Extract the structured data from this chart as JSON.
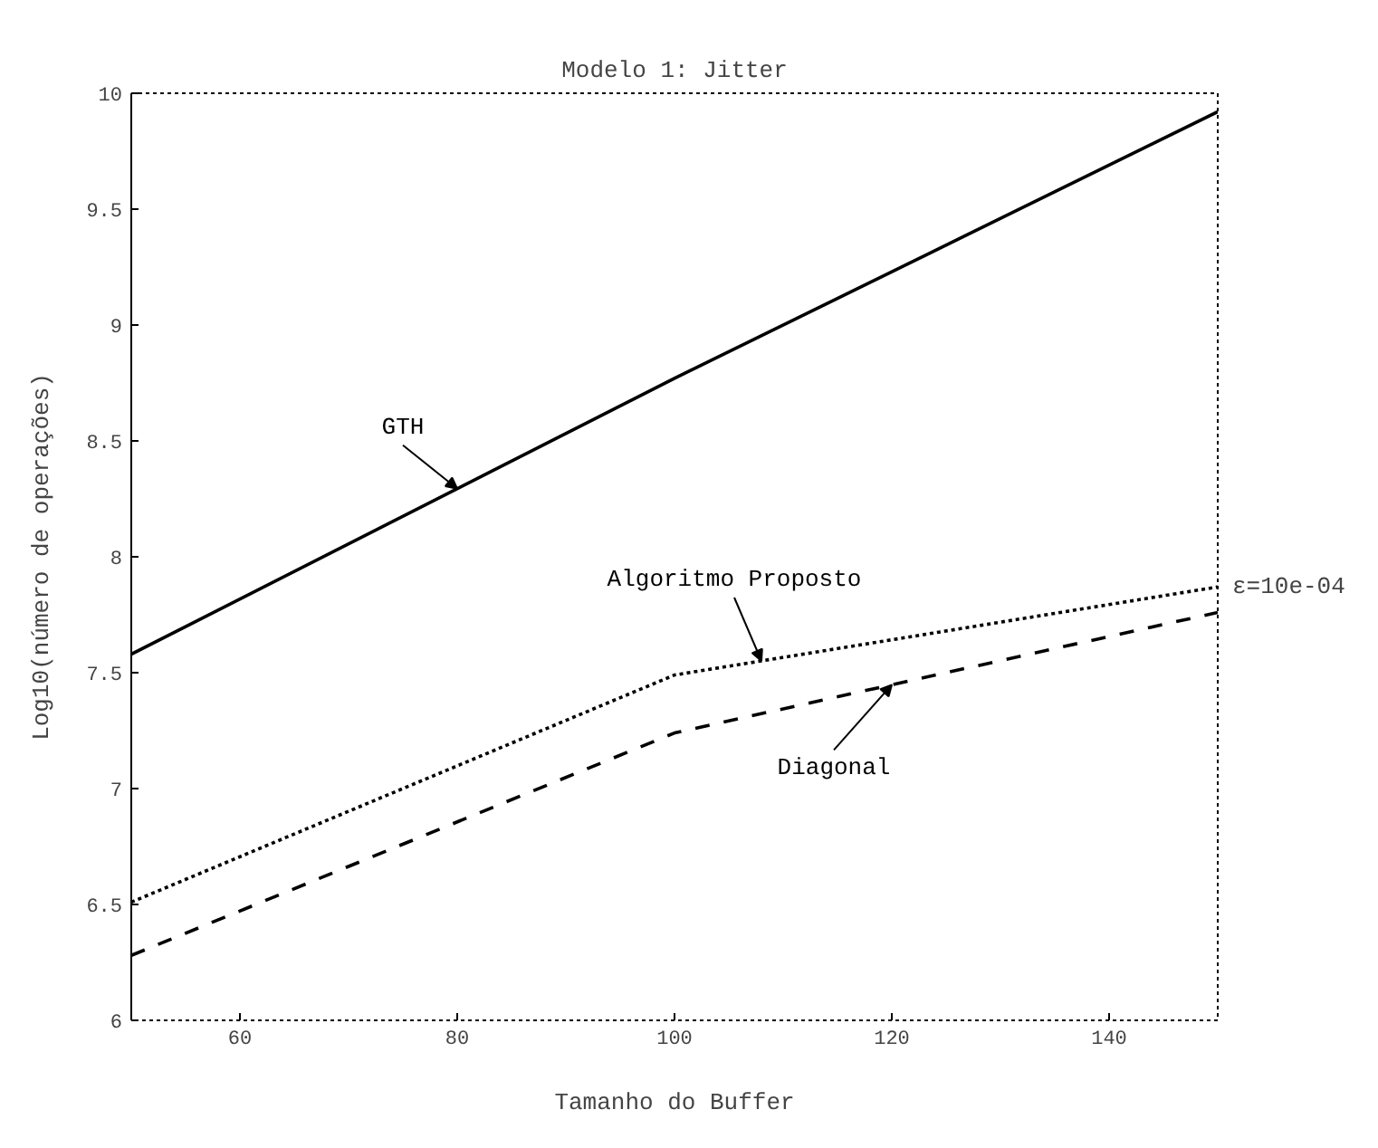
{
  "chart_data": {
    "type": "line",
    "title": "Modelo 1: Jitter",
    "xlabel": "Tamanho do Buffer",
    "ylabel": "Log10(número de operações)",
    "series": [
      {
        "name": "GTH",
        "color": "#000000",
        "line_style": "solid",
        "x": [
          50,
          100,
          150
        ],
        "values": [
          7.58,
          8.77,
          9.92
        ]
      },
      {
        "name": "Algoritmo Proposto",
        "color": "#000000",
        "line_style": "dotted",
        "x": [
          50,
          100,
          150
        ],
        "values": [
          6.51,
          7.49,
          7.87
        ]
      },
      {
        "name": "Diagonal",
        "color": "#000000",
        "line_style": "dashed",
        "x": [
          50,
          100,
          150
        ],
        "values": [
          6.28,
          7.24,
          7.76
        ]
      }
    ],
    "annotations": [
      "ε=10e-04"
    ],
    "xlim": [
      50,
      150
    ],
    "ylim": [
      6,
      10
    ],
    "xticks": [
      60,
      80,
      100,
      120,
      140
    ],
    "yticks": [
      6,
      6.5,
      7,
      7.5,
      8,
      8.5,
      9,
      9.5,
      10
    ],
    "grid": false,
    "legend": false,
    "marker": "none"
  }
}
